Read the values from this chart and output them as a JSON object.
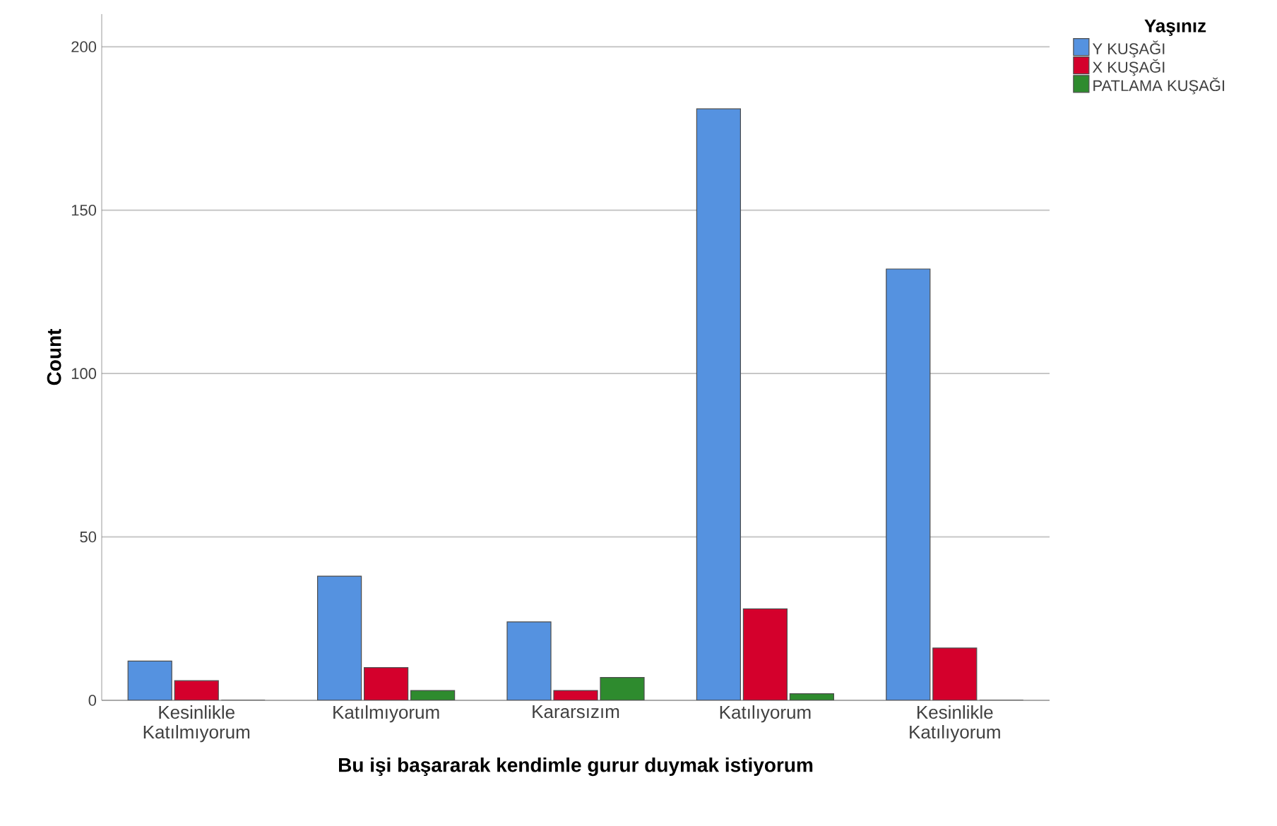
{
  "chart_data": {
    "type": "bar",
    "xlabel": "Bu işi başararak kendimle gurur duymak istiyorum",
    "ylabel": "Count",
    "legend_title": "Yaşınız",
    "categories": [
      "Kesinlikle Katılmıyorum",
      "Katılmıyorum",
      "Kararsızım",
      "Katılıyorum",
      "Kesinlikle Katılıyorum"
    ],
    "series": [
      {
        "name": "Y KUŞAĞI",
        "color": "#5592e0",
        "values": [
          12,
          38,
          24,
          181,
          132
        ]
      },
      {
        "name": "X KUŞAĞI",
        "color": "#d4002c",
        "values": [
          6,
          10,
          3,
          28,
          16
        ]
      },
      {
        "name": "PATLAMA KUŞAĞI",
        "color": "#2e8b2e",
        "values": [
          0,
          3,
          7,
          2,
          0
        ]
      }
    ],
    "ylim": [
      0,
      210
    ],
    "yticks": [
      0,
      50,
      100,
      150,
      200
    ],
    "grid": "y",
    "legend": "top right"
  }
}
